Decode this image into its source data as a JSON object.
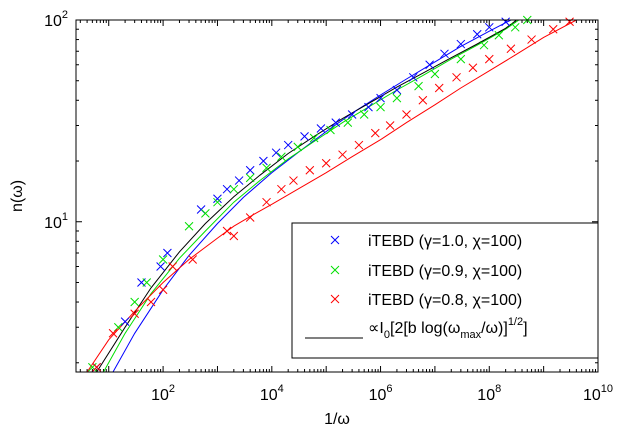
{
  "chart_data": {
    "type": "scatter",
    "title": "",
    "xlabel": "1/ω",
    "ylabel": "n(ω)",
    "x_scale": "log",
    "y_scale": "log",
    "xlim": [
      2.5,
      10000000000
    ],
    "ylim": [
      1.8,
      100
    ],
    "x_ticks": [
      {
        "value": 100,
        "base": "10",
        "exp": "2"
      },
      {
        "value": 10000,
        "base": "10",
        "exp": "4"
      },
      {
        "value": 1000000,
        "base": "10",
        "exp": "6"
      },
      {
        "value": 100000000,
        "base": "10",
        "exp": "8"
      },
      {
        "value": 10000000000,
        "base": "10",
        "exp": "10"
      }
    ],
    "y_ticks": [
      {
        "value": 10,
        "base": "10",
        "exp": "1"
      },
      {
        "value": 100,
        "base": "10",
        "exp": "2"
      }
    ],
    "grid": false,
    "legend_position": "bottom-right",
    "series": [
      {
        "name": "iTEBD (γ=1.0, χ=100)",
        "color": "#0000ff",
        "marker": "x",
        "x": [
          6,
          20,
          40,
          90,
          120,
          500,
          1000,
          1500,
          2500,
          4000,
          7000,
          12000,
          20000,
          40000,
          80000,
          150000,
          300000,
          600000,
          1000000,
          2000000,
          4000000,
          8000000,
          15000000,
          30000000,
          60000000,
          100000000,
          200000000
        ],
        "values": [
          1.9,
          3.2,
          5.0,
          6.0,
          7.0,
          11.5,
          13.0,
          14.5,
          16.0,
          18.0,
          20.0,
          22.0,
          24.0,
          26.5,
          29.0,
          31.0,
          34.0,
          37.0,
          41.0,
          45.0,
          52.0,
          60.0,
          68.0,
          76.0,
          85.0,
          92.0,
          98.0
        ]
      },
      {
        "name": "iTEBD (γ=0.9, χ=100)",
        "color": "#00e000",
        "marker": "x",
        "x": [
          5,
          15,
          30,
          50,
          100,
          300,
          600,
          1000,
          2000,
          4000,
          8000,
          15000,
          30000,
          60000,
          120000,
          250000,
          500000,
          1000000,
          2000000,
          5000000,
          10000000,
          30000000,
          80000000,
          150000000,
          300000000,
          500000000
        ],
        "values": [
          1.9,
          3.0,
          4.0,
          5.0,
          6.5,
          9.5,
          11.0,
          12.5,
          14.5,
          16.5,
          18.5,
          21.0,
          23.5,
          26.0,
          28.5,
          31.0,
          34.0,
          37.0,
          41.0,
          47.0,
          54.0,
          64.0,
          75.0,
          84.0,
          92.0,
          100.0
        ]
      },
      {
        "name": "iTEBD (γ=0.8, χ=100)",
        "color": "#ff0000",
        "marker": "x",
        "x": [
          6,
          12,
          30,
          60,
          100,
          150,
          350,
          1500,
          2000,
          4000,
          8000,
          15000,
          25000,
          50000,
          100000,
          200000,
          400000,
          800000,
          1500000,
          3000000,
          6000000,
          12000000,
          25000000,
          50000000,
          100000000,
          250000000,
          600000000,
          1500000000,
          3000000000
        ],
        "values": [
          1.9,
          2.8,
          3.5,
          4.0,
          4.6,
          6.0,
          6.5,
          9.0,
          8.5,
          10.5,
          12.5,
          14.5,
          16.0,
          18.0,
          19.5,
          21.5,
          24.0,
          27.5,
          30.0,
          34.0,
          40.0,
          46.0,
          52.0,
          58.0,
          64.0,
          72.0,
          80.0,
          90.0,
          98.0
        ]
      },
      {
        "name": "∝I₀[2[b log(ω_max/ω)]^1/2]",
        "color": "#000000",
        "marker": "line",
        "x": [],
        "values": []
      }
    ],
    "fit_curves": [
      {
        "color": "#0000ff",
        "x": [
          12,
          30,
          100,
          300,
          1000,
          3000,
          10000,
          30000,
          100000,
          300000,
          1000000,
          3000000,
          10000000,
          30000000,
          100000000,
          250000000
        ],
        "values": [
          1.8,
          2.8,
          4.6,
          6.8,
          9.8,
          13.2,
          17.5,
          22.0,
          28.0,
          34.5,
          42.5,
          51.0,
          62.0,
          74.0,
          88.0,
          100.0
        ]
      },
      {
        "color": "#00e000",
        "x": [
          8,
          20,
          60,
          200,
          600,
          2000,
          6000,
          20000,
          60000,
          200000,
          600000,
          2000000,
          6000000,
          20000000,
          60000000,
          200000000,
          350000000
        ],
        "values": [
          1.8,
          2.8,
          4.4,
          6.6,
          9.0,
          12.5,
          16.0,
          20.5,
          25.0,
          31.0,
          37.0,
          45.0,
          53.0,
          64.0,
          75.0,
          90.0,
          100.0
        ]
      },
      {
        "color": "#000000",
        "x": [
          6,
          20,
          60,
          200,
          600,
          2000,
          6000,
          20000,
          60000,
          200000,
          600000,
          2000000,
          6000000,
          20000000,
          60000000,
          200000000,
          320000000
        ],
        "values": [
          1.8,
          3.0,
          4.7,
          7.1,
          9.8,
          13.3,
          17.0,
          21.8,
          26.5,
          32.5,
          38.5,
          46.5,
          54.5,
          65.0,
          76.0,
          91.0,
          100.0
        ]
      },
      {
        "color": "#ff0000",
        "x": [
          4,
          10,
          30,
          100,
          300,
          1000,
          2000,
          5000,
          10000,
          30000,
          100000,
          300000,
          1000000,
          3000000,
          10000000,
          30000000,
          100000000,
          300000000,
          1000000000,
          4000000000
        ],
        "values": [
          1.8,
          2.6,
          3.6,
          5.0,
          6.5,
          8.3,
          9.5,
          11.0,
          12.2,
          14.5,
          17.5,
          21.0,
          25.5,
          31.0,
          38.0,
          46.0,
          56.0,
          67.0,
          82.0,
          100.0
        ]
      }
    ]
  }
}
